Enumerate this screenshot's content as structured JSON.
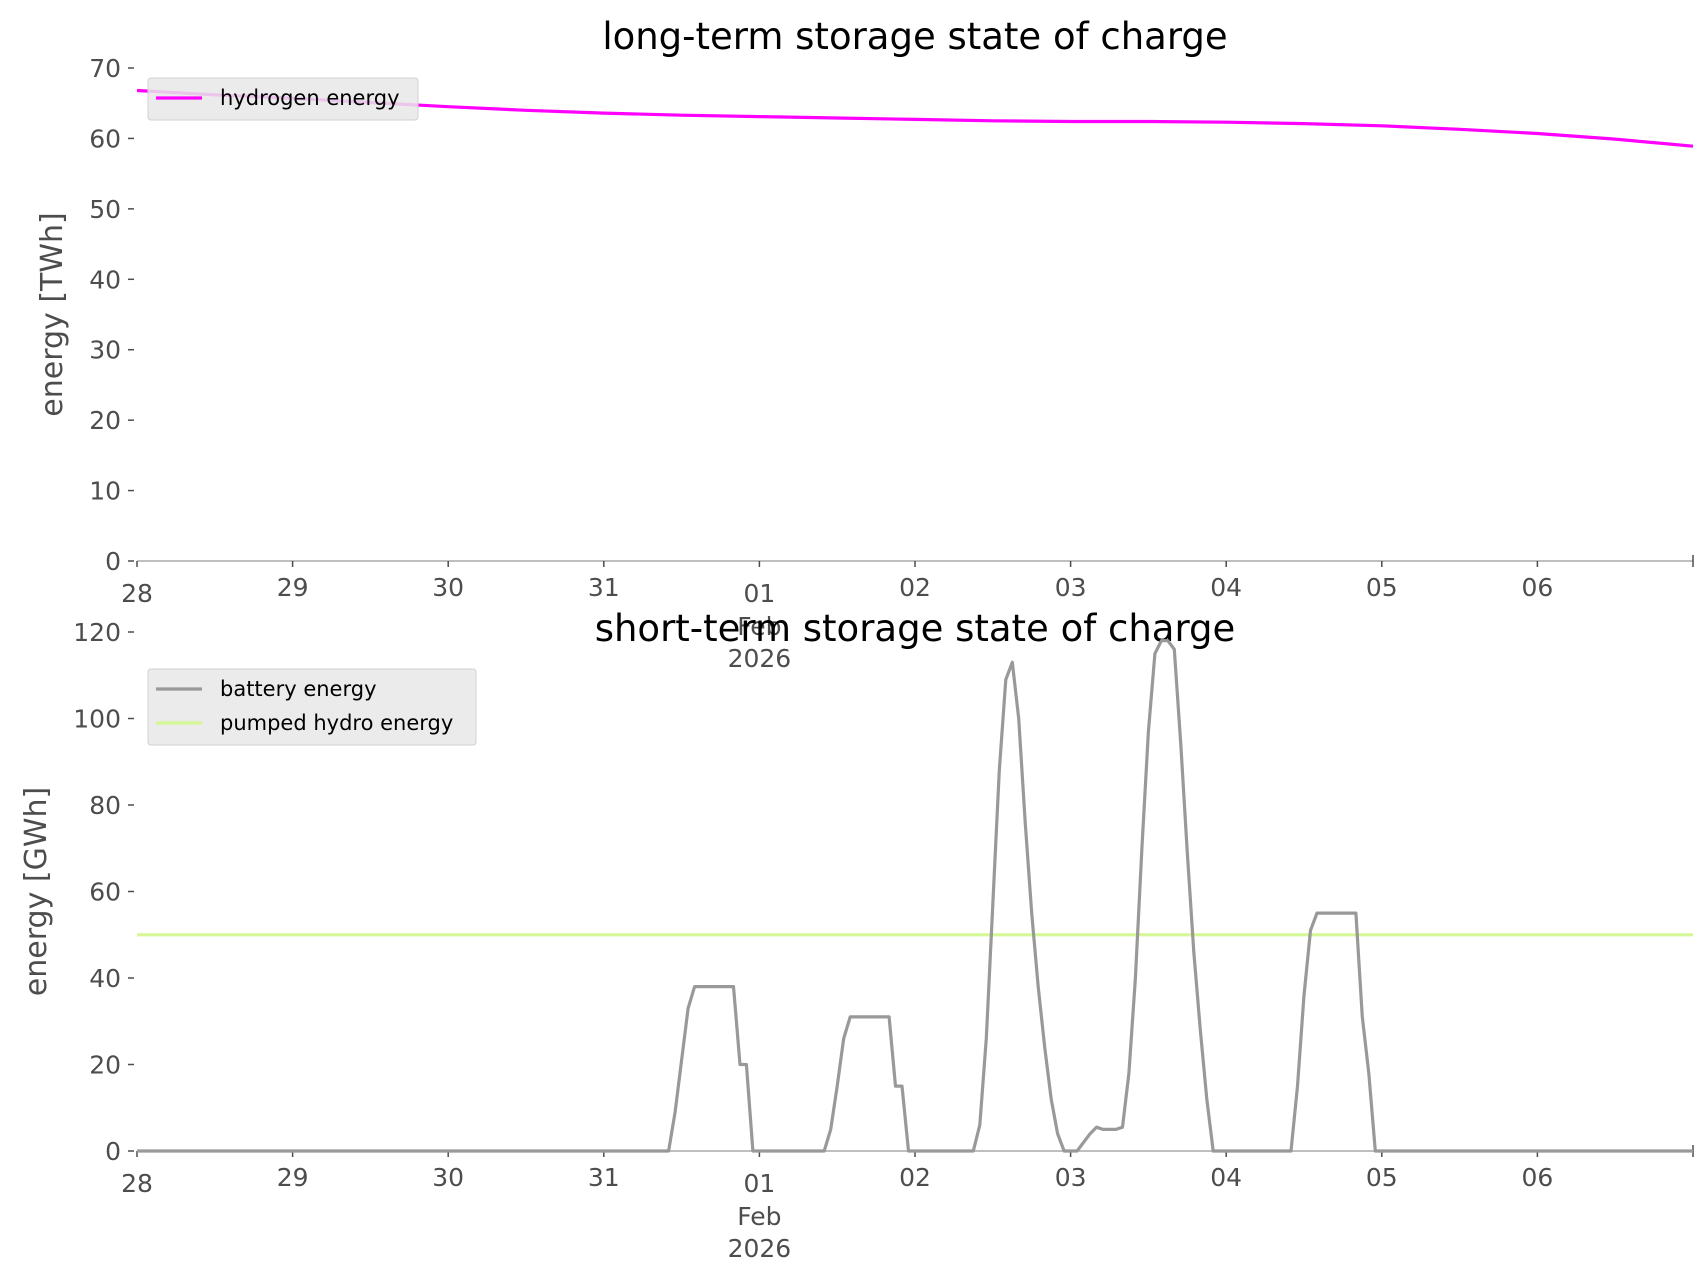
{
  "chart_data": [
    {
      "type": "line",
      "title": "long-term storage state of charge",
      "xlabel": "",
      "ylabel": "energy [TWh]",
      "ylim": [
        0,
        70
      ],
      "yticks": [
        0,
        10,
        20,
        30,
        40,
        50,
        60,
        70
      ],
      "xlim": [
        "2026-01-28",
        "2026-02-07"
      ],
      "xticks": [
        {
          "date": "2026-01-28",
          "label": "28"
        },
        {
          "date": "2026-01-29",
          "label": "29"
        },
        {
          "date": "2026-01-30",
          "label": "30"
        },
        {
          "date": "2026-01-31",
          "label": "31"
        },
        {
          "date": "2026-02-01",
          "label": "01",
          "sub1": "Feb",
          "sub2": "2026"
        },
        {
          "date": "2026-02-02",
          "label": "02"
        },
        {
          "date": "2026-02-03",
          "label": "03"
        },
        {
          "date": "2026-02-04",
          "label": "04"
        },
        {
          "date": "2026-02-05",
          "label": "05"
        },
        {
          "date": "2026-02-06",
          "label": "06"
        }
      ],
      "grid": false,
      "legend_position": "top-left",
      "series": [
        {
          "name": "hydrogen energy",
          "color": "#ff00ff",
          "points": [
            [
              "2026-01-28 00:00",
              66.8
            ],
            [
              "2026-01-28 12:00",
              66.2
            ],
            [
              "2026-01-29 00:00",
              65.7
            ],
            [
              "2026-01-29 12:00",
              65.1
            ],
            [
              "2026-01-30 00:00",
              64.5
            ],
            [
              "2026-01-30 12:00",
              64.0
            ],
            [
              "2026-01-31 00:00",
              63.6
            ],
            [
              "2026-01-31 12:00",
              63.3
            ],
            [
              "2026-02-01 00:00",
              63.1
            ],
            [
              "2026-02-01 12:00",
              62.9
            ],
            [
              "2026-02-02 00:00",
              62.7
            ],
            [
              "2026-02-02 12:00",
              62.5
            ],
            [
              "2026-02-03 00:00",
              62.4
            ],
            [
              "2026-02-03 12:00",
              62.4
            ],
            [
              "2026-02-04 00:00",
              62.3
            ],
            [
              "2026-02-04 12:00",
              62.1
            ],
            [
              "2026-02-05 00:00",
              61.8
            ],
            [
              "2026-02-05 12:00",
              61.3
            ],
            [
              "2026-02-06 00:00",
              60.7
            ],
            [
              "2026-02-06 12:00",
              59.9
            ],
            [
              "2026-02-07 00:00",
              58.9
            ]
          ]
        }
      ]
    },
    {
      "type": "line",
      "title": "short-term storage state of charge",
      "xlabel": "",
      "ylabel": "energy [GWh]",
      "ylim": [
        0,
        120
      ],
      "yticks": [
        0,
        20,
        40,
        60,
        80,
        100,
        120
      ],
      "xlim": [
        "2026-01-28",
        "2026-02-07"
      ],
      "xticks": [
        {
          "date": "2026-01-28",
          "label": "28"
        },
        {
          "date": "2026-01-29",
          "label": "29"
        },
        {
          "date": "2026-01-30",
          "label": "30"
        },
        {
          "date": "2026-01-31",
          "label": "31"
        },
        {
          "date": "2026-02-01",
          "label": "01",
          "sub1": "Feb",
          "sub2": "2026"
        },
        {
          "date": "2026-02-02",
          "label": "02"
        },
        {
          "date": "2026-02-03",
          "label": "03"
        },
        {
          "date": "2026-02-04",
          "label": "04"
        },
        {
          "date": "2026-02-05",
          "label": "05"
        },
        {
          "date": "2026-02-06",
          "label": "06"
        }
      ],
      "grid": false,
      "legend_position": "top-left",
      "series": [
        {
          "name": "battery energy",
          "color": "#999999",
          "points": [
            [
              "2026-01-28 00:00",
              0
            ],
            [
              "2026-01-31 10:00",
              0
            ],
            [
              "2026-01-31 11:00",
              9
            ],
            [
              "2026-01-31 12:00",
              21
            ],
            [
              "2026-01-31 13:00",
              33
            ],
            [
              "2026-01-31 14:00",
              38
            ],
            [
              "2026-01-31 20:00",
              38
            ],
            [
              "2026-01-31 21:00",
              20
            ],
            [
              "2026-01-31 22:00",
              20
            ],
            [
              "2026-01-31 23:00",
              0
            ],
            [
              "2026-02-01 10:00",
              0
            ],
            [
              "2026-02-01 11:00",
              5
            ],
            [
              "2026-02-01 12:00",
              15
            ],
            [
              "2026-02-01 13:00",
              26
            ],
            [
              "2026-02-01 14:00",
              31
            ],
            [
              "2026-02-01 20:00",
              31
            ],
            [
              "2026-02-01 21:00",
              15
            ],
            [
              "2026-02-01 22:00",
              15
            ],
            [
              "2026-02-01 23:00",
              0
            ],
            [
              "2026-02-02 09:00",
              0
            ],
            [
              "2026-02-02 10:00",
              6
            ],
            [
              "2026-02-02 11:00",
              26
            ],
            [
              "2026-02-02 12:00",
              57
            ],
            [
              "2026-02-02 13:00",
              88
            ],
            [
              "2026-02-02 14:00",
              109
            ],
            [
              "2026-02-02 15:00",
              113
            ],
            [
              "2026-02-02 16:00",
              100
            ],
            [
              "2026-02-02 17:00",
              76
            ],
            [
              "2026-02-02 18:00",
              55
            ],
            [
              "2026-02-02 19:00",
              38
            ],
            [
              "2026-02-02 20:00",
              24
            ],
            [
              "2026-02-02 21:00",
              12
            ],
            [
              "2026-02-02 22:00",
              4
            ],
            [
              "2026-02-02 23:00",
              0
            ],
            [
              "2026-02-03 01:00",
              0
            ],
            [
              "2026-02-03 02:00",
              2
            ],
            [
              "2026-02-03 03:00",
              4
            ],
            [
              "2026-02-03 04:00",
              5.5
            ],
            [
              "2026-02-03 05:00",
              5
            ],
            [
              "2026-02-03 07:00",
              5
            ],
            [
              "2026-02-03 08:00",
              5.5
            ],
            [
              "2026-02-03 09:00",
              18
            ],
            [
              "2026-02-03 10:00",
              40
            ],
            [
              "2026-02-03 11:00",
              70
            ],
            [
              "2026-02-03 12:00",
              97
            ],
            [
              "2026-02-03 13:00",
              115
            ],
            [
              "2026-02-03 14:00",
              118
            ],
            [
              "2026-02-03 15:00",
              118
            ],
            [
              "2026-02-03 16:00",
              116
            ],
            [
              "2026-02-03 17:00",
              94
            ],
            [
              "2026-02-03 18:00",
              69
            ],
            [
              "2026-02-03 19:00",
              46
            ],
            [
              "2026-02-03 20:00",
              28
            ],
            [
              "2026-02-03 21:00",
              12
            ],
            [
              "2026-02-03 22:00",
              0
            ],
            [
              "2026-02-04 10:00",
              0
            ],
            [
              "2026-02-04 11:00",
              15
            ],
            [
              "2026-02-04 12:00",
              36
            ],
            [
              "2026-02-04 13:00",
              51
            ],
            [
              "2026-02-04 14:00",
              55
            ],
            [
              "2026-02-04 20:00",
              55
            ],
            [
              "2026-02-04 21:00",
              31
            ],
            [
              "2026-02-04 22:00",
              18
            ],
            [
              "2026-02-04 23:00",
              0
            ],
            [
              "2026-02-07 00:00",
              0
            ]
          ]
        },
        {
          "name": "pumped hydro energy",
          "color": "#d5f796",
          "points": [
            [
              "2026-01-28 00:00",
              50
            ],
            [
              "2026-02-07 00:00",
              50
            ]
          ]
        }
      ]
    }
  ]
}
